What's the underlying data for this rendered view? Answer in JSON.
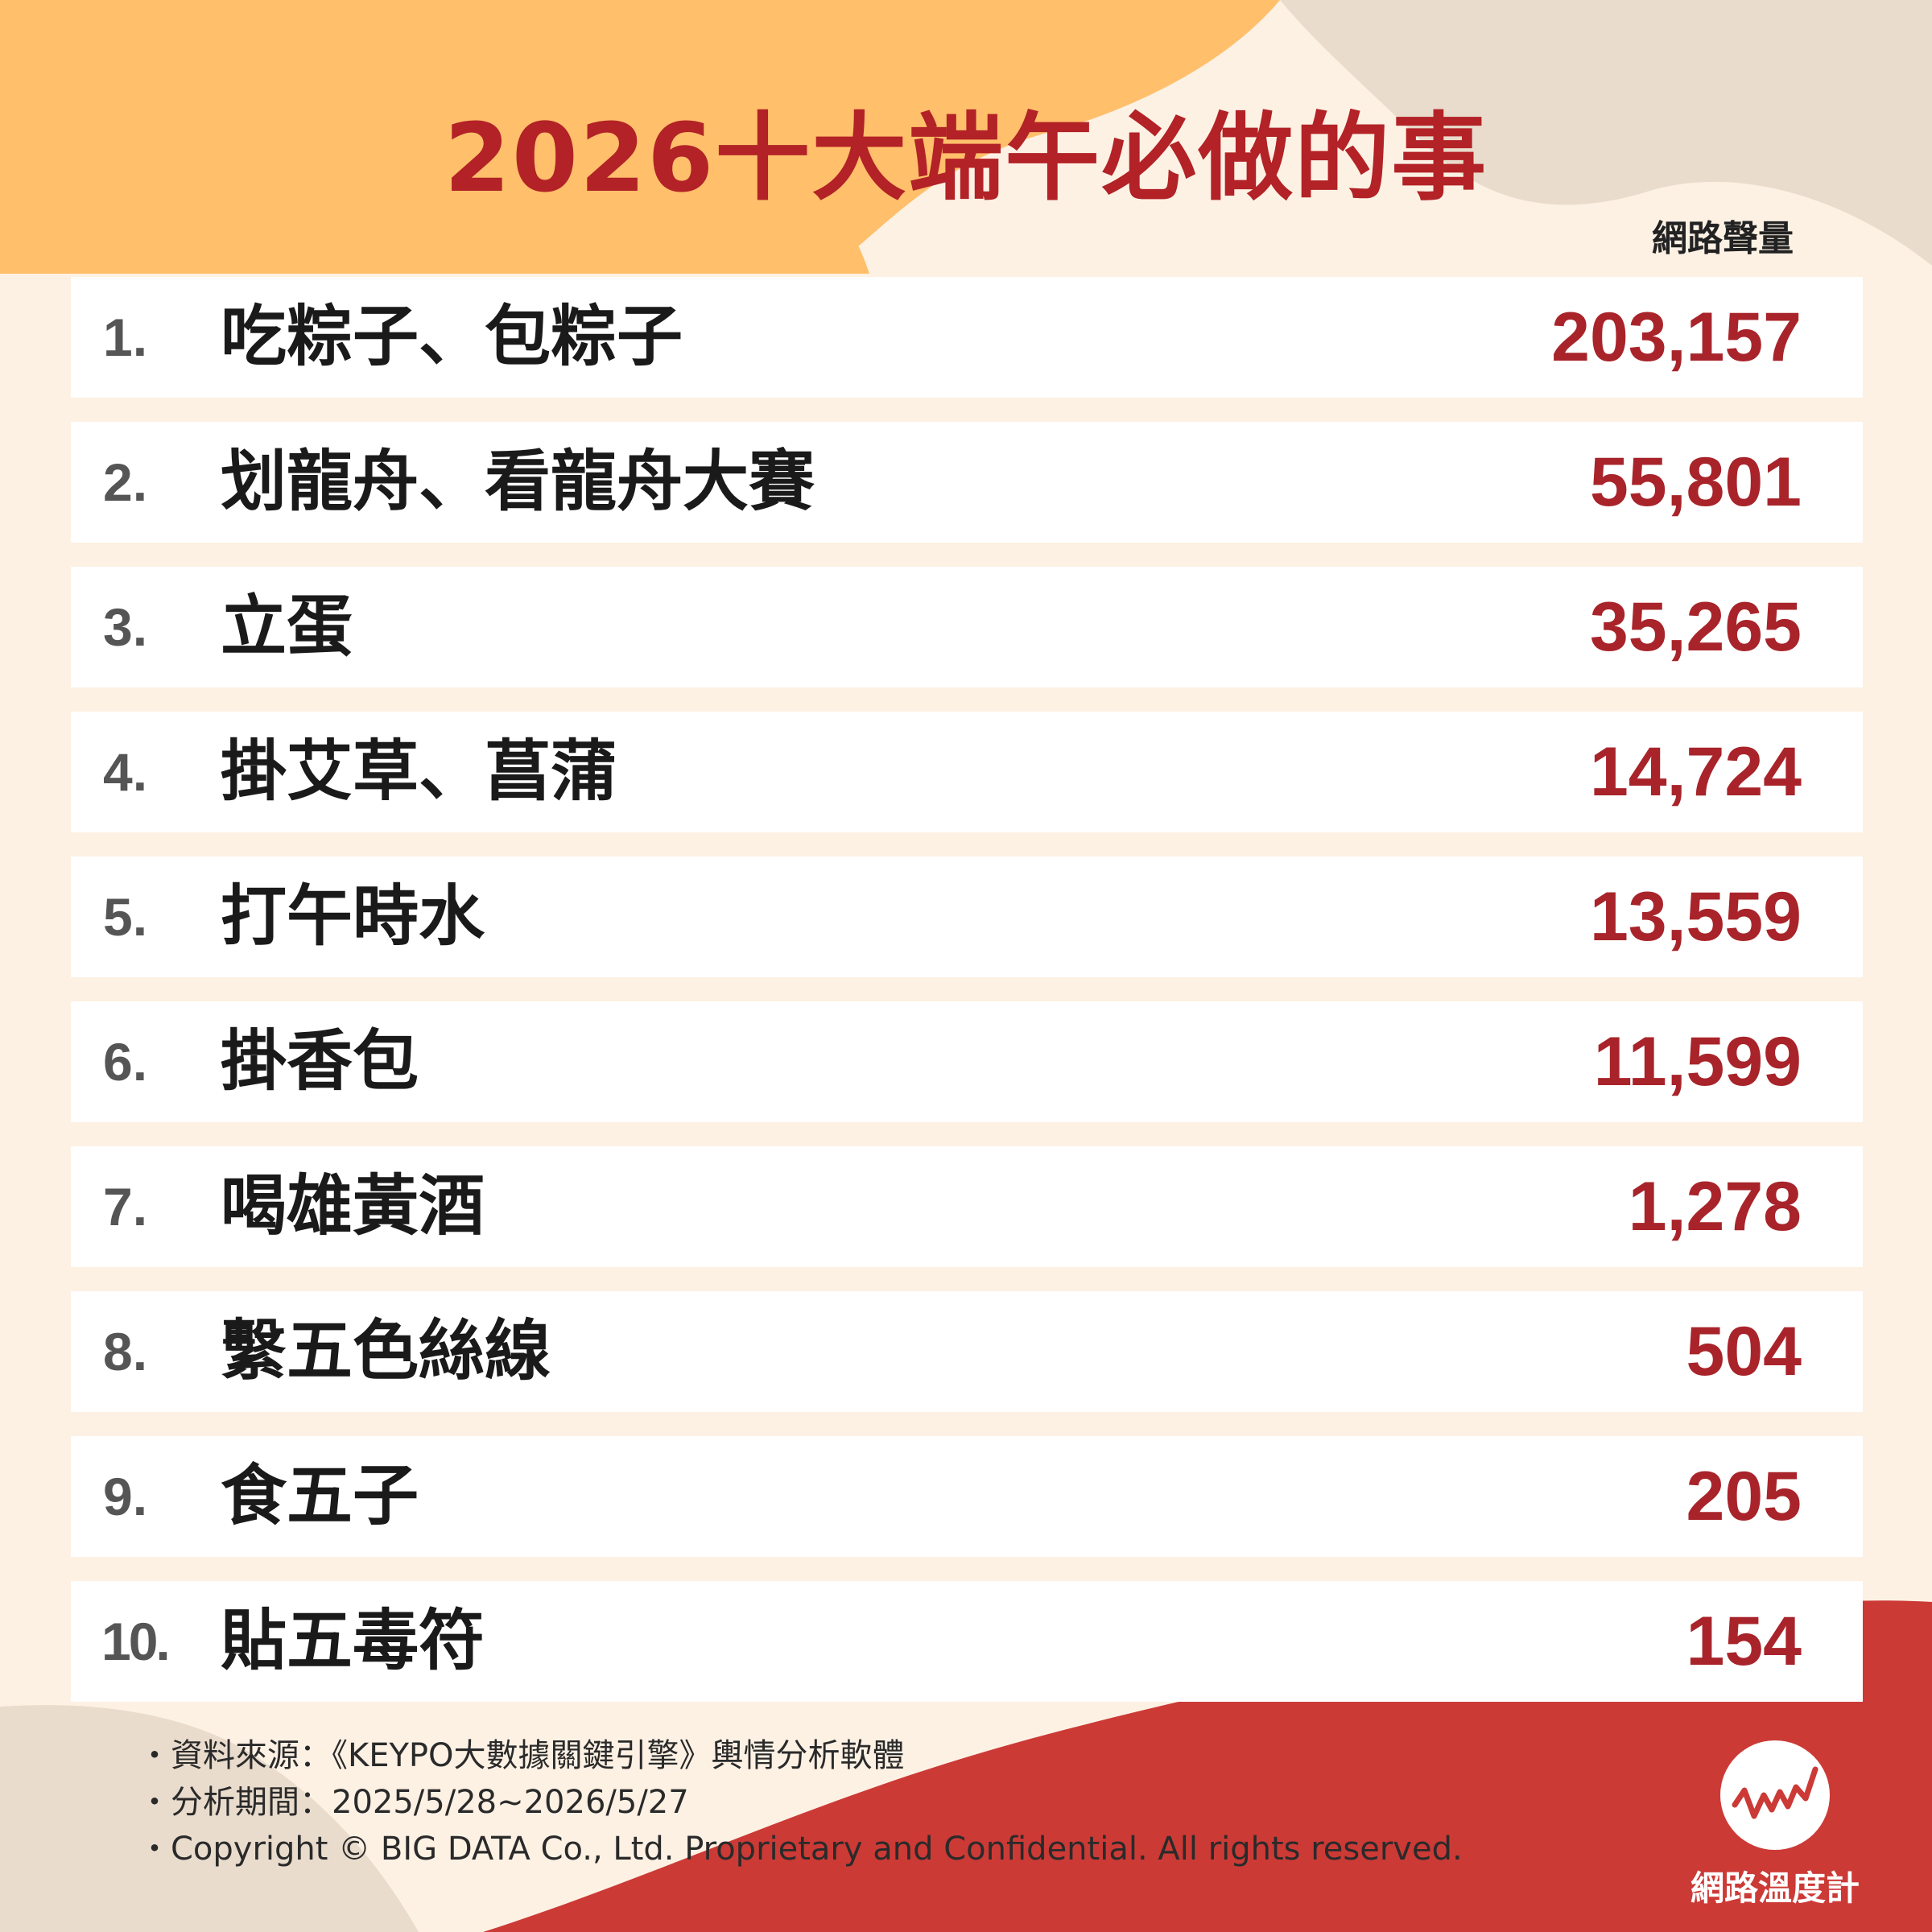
{
  "colors": {
    "background": "#fdf1e4",
    "title": "#b22226",
    "value": "#a8242a",
    "accent_orange": "#ffbf6b",
    "accent_beige": "#e9dccd",
    "accent_red": "#cc3a36"
  },
  "title": "2026十大端午必做的事",
  "chart_data": {
    "type": "table",
    "title": "2026十大端午必做的事",
    "value_header": "網路聲量",
    "rows": [
      {
        "rank": "1.",
        "label": "吃粽子、包粽子",
        "value": 203157,
        "value_text": "203,157"
      },
      {
        "rank": "2.",
        "label": "划龍舟、看龍舟大賽",
        "value": 55801,
        "value_text": "55,801"
      },
      {
        "rank": "3.",
        "label": "立蛋",
        "value": 35265,
        "value_text": "35,265"
      },
      {
        "rank": "4.",
        "label": "掛艾草、菖蒲",
        "value": 14724,
        "value_text": "14,724"
      },
      {
        "rank": "5.",
        "label": "打午時水",
        "value": 13559,
        "value_text": "13,559"
      },
      {
        "rank": "6.",
        "label": "掛香包",
        "value": 11599,
        "value_text": "11,599"
      },
      {
        "rank": "7.",
        "label": "喝雄黃酒",
        "value": 1278,
        "value_text": "1,278"
      },
      {
        "rank": "8.",
        "label": "繫五色絲線",
        "value": 504,
        "value_text": "504"
      },
      {
        "rank": "9.",
        "label": "食五子",
        "value": 205,
        "value_text": "205"
      },
      {
        "rank": "10.",
        "label": "貼五毒符",
        "value": 154,
        "value_text": "154"
      }
    ]
  },
  "footer": {
    "bullet": "・",
    "source": "資料來源：《KEYPO大數據關鍵引擎》輿情分析軟體",
    "period": "分析期間：2025/5/28~2026/5/27",
    "copyright": "・Copyright © BIG DATA Co., Ltd. Proprietary and Confidential. All rights reserved."
  },
  "brand": {
    "name": "網路溫度計",
    "logo_icon": "pulse-line-logo-icon"
  }
}
